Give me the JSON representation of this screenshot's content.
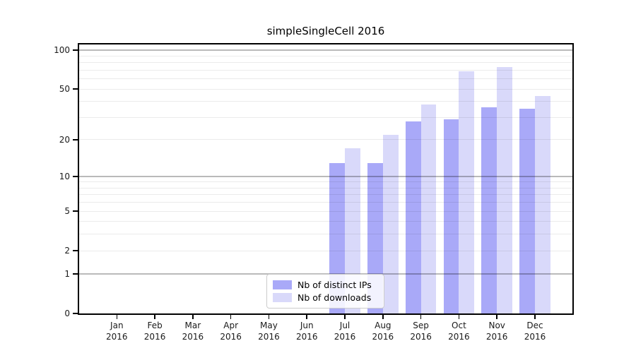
{
  "chart_data": {
    "type": "bar",
    "title": "simpleSingleCell 2016",
    "categories": [
      "Jan",
      "Feb",
      "Mar",
      "Apr",
      "May",
      "Jun",
      "Jul",
      "Aug",
      "Sep",
      "Oct",
      "Nov",
      "Dec"
    ],
    "year_label": "2016",
    "series": [
      {
        "name": "Nb of distinct IPs",
        "color": "#a9a9f8",
        "values": [
          0,
          0,
          0,
          0,
          0,
          0,
          13,
          13,
          28,
          29,
          36,
          35
        ]
      },
      {
        "name": "Nb of downloads",
        "color": "#d9d9fa",
        "values": [
          0,
          0,
          0,
          0,
          0,
          0,
          17,
          22,
          38,
          69,
          74,
          44
        ]
      }
    ],
    "y_axis": {
      "scale": "log1p",
      "tick_values": [
        0,
        1,
        2,
        5,
        10,
        20,
        50,
        100
      ],
      "major_grid_values": [
        1,
        10,
        100
      ],
      "minor_grid_values": [
        2,
        3,
        4,
        5,
        6,
        7,
        8,
        9,
        20,
        30,
        40,
        50,
        60,
        70,
        80,
        90
      ],
      "range": [
        0,
        112
      ]
    },
    "x_axis": {
      "label_lines": 2
    },
    "legend": {
      "position": "lower-center-inside"
    },
    "grid": true
  }
}
